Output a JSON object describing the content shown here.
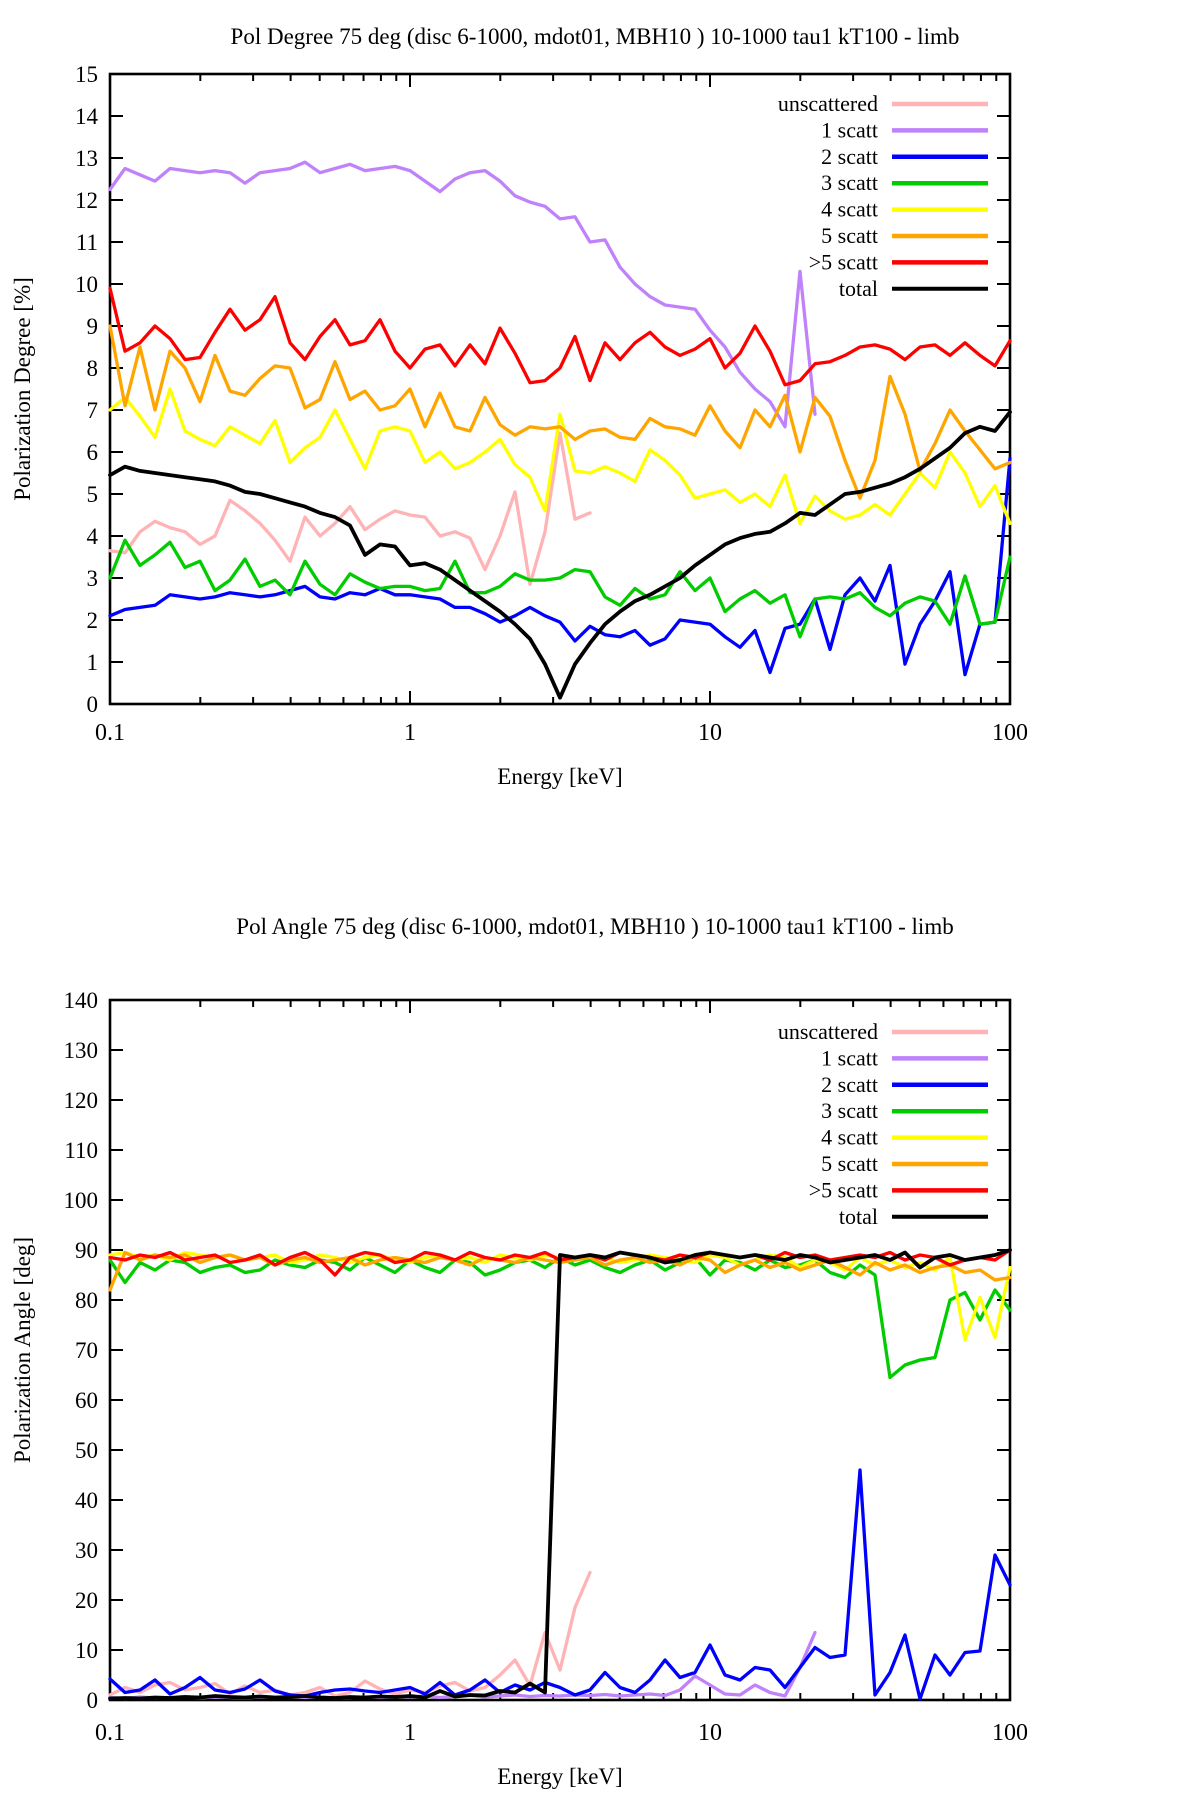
{
  "page": {
    "background": "#ffffff"
  },
  "chart_data": [
    {
      "id": "pol-degree",
      "type": "line",
      "title": "Pol Degree 75 deg (disc 6-1000, mdot01, MBH10 ) 10-1000 tau1 kT100 - limb",
      "x_axis": {
        "label": "Energy [keV]",
        "scale": "log",
        "min": 0.1,
        "max": 100,
        "tick_labels": [
          "0.1",
          "1",
          "10",
          "100"
        ]
      },
      "y_axis": {
        "label": "Polarization Degree [%]",
        "min": 0,
        "max": 15,
        "step": 1,
        "tick_labels": [
          "0",
          "1",
          "2",
          "3",
          "4",
          "5",
          "6",
          "7",
          "8",
          "9",
          "10",
          "11",
          "12",
          "13",
          "14",
          "15"
        ]
      },
      "legend_position": "top-right",
      "grid": false,
      "x_log_grid": {
        "start_exponent": -1,
        "points_per_decade": 20,
        "count": 61
      },
      "series": [
        {
          "name": "unscattered",
          "color": "#ffb3b5",
          "values": [
            3.65,
            3.6,
            4.1,
            4.35,
            4.2,
            4.1,
            3.8,
            4.0,
            4.85,
            4.6,
            4.3,
            3.9,
            3.4,
            4.45,
            4.0,
            4.3,
            4.7,
            4.15,
            4.4,
            4.6,
            4.5,
            4.45,
            4.0,
            4.1,
            3.95,
            3.2,
            4.0,
            5.05,
            2.85,
            4.1,
            6.45,
            4.4,
            4.55
          ]
        },
        {
          "name": "1 scatt",
          "color": "#bf82fa",
          "values": [
            12.25,
            12.75,
            12.6,
            12.45,
            12.75,
            12.7,
            12.65,
            12.7,
            12.65,
            12.4,
            12.65,
            12.7,
            12.75,
            12.9,
            12.65,
            12.75,
            12.85,
            12.7,
            12.75,
            12.8,
            12.7,
            12.45,
            12.2,
            12.5,
            12.65,
            12.7,
            12.45,
            12.1,
            11.95,
            11.85,
            11.55,
            11.6,
            11.0,
            11.05,
            10.4,
            10.0,
            9.7,
            9.5,
            9.45,
            9.4,
            8.9,
            8.5,
            7.9,
            7.5,
            7.2,
            6.6,
            10.3,
            6.9
          ]
        },
        {
          "name": "2 scatt",
          "color": "#0000ff",
          "values": [
            2.1,
            2.25,
            2.3,
            2.35,
            2.6,
            2.55,
            2.5,
            2.55,
            2.65,
            2.6,
            2.55,
            2.6,
            2.7,
            2.8,
            2.55,
            2.5,
            2.65,
            2.6,
            2.75,
            2.6,
            2.6,
            2.55,
            2.5,
            2.3,
            2.3,
            2.15,
            1.95,
            2.1,
            2.3,
            2.1,
            1.95,
            1.5,
            1.85,
            1.65,
            1.6,
            1.75,
            1.4,
            1.55,
            2.0,
            1.95,
            1.9,
            1.6,
            1.35,
            1.75,
            0.75,
            1.8,
            1.9,
            2.5,
            1.3,
            2.6,
            3.0,
            2.45,
            3.3,
            0.95,
            1.9,
            2.45,
            3.15,
            0.7,
            1.9,
            1.95,
            5.85
          ]
        },
        {
          "name": "3 scatt",
          "color": "#00cc00",
          "values": [
            3.0,
            3.9,
            3.3,
            3.55,
            3.85,
            3.25,
            3.4,
            2.7,
            2.95,
            3.45,
            2.8,
            2.95,
            2.6,
            3.4,
            2.85,
            2.6,
            3.1,
            2.9,
            2.75,
            2.8,
            2.8,
            2.7,
            2.75,
            3.4,
            2.65,
            2.65,
            2.8,
            3.1,
            2.95,
            2.95,
            3.0,
            3.2,
            3.15,
            2.55,
            2.35,
            2.75,
            2.5,
            2.6,
            3.15,
            2.7,
            3.0,
            2.2,
            2.5,
            2.7,
            2.4,
            2.6,
            1.6,
            2.5,
            2.55,
            2.5,
            2.65,
            2.3,
            2.1,
            2.4,
            2.55,
            2.45,
            1.9,
            3.05,
            1.9,
            1.95,
            3.5
          ]
        },
        {
          "name": "4 scatt",
          "color": "#ffff00",
          "values": [
            7.0,
            7.3,
            6.85,
            6.35,
            7.5,
            6.5,
            6.3,
            6.15,
            6.6,
            6.4,
            6.2,
            6.75,
            5.75,
            6.1,
            6.35,
            7.0,
            6.3,
            5.6,
            6.5,
            6.6,
            6.5,
            5.75,
            6.0,
            5.6,
            5.75,
            6.0,
            6.3,
            5.7,
            5.4,
            4.6,
            6.9,
            5.55,
            5.5,
            5.65,
            5.5,
            5.3,
            6.05,
            5.8,
            5.45,
            4.9,
            5.0,
            5.1,
            4.8,
            5.0,
            4.7,
            5.45,
            4.3,
            4.95,
            4.6,
            4.4,
            4.5,
            4.75,
            4.5,
            5.0,
            5.5,
            5.15,
            6.0,
            5.5,
            4.7,
            5.2,
            4.3
          ]
        },
        {
          "name": "5 scatt",
          "color": "#ffa500",
          "values": [
            9.0,
            7.1,
            8.5,
            7.0,
            8.4,
            8.0,
            7.2,
            8.3,
            7.45,
            7.35,
            7.75,
            8.05,
            8.0,
            7.05,
            7.25,
            8.15,
            7.25,
            7.45,
            7.0,
            7.1,
            7.5,
            6.6,
            7.4,
            6.6,
            6.5,
            7.3,
            6.65,
            6.4,
            6.6,
            6.55,
            6.6,
            6.3,
            6.5,
            6.55,
            6.35,
            6.3,
            6.8,
            6.6,
            6.55,
            6.4,
            7.1,
            6.5,
            6.1,
            7.0,
            6.6,
            7.35,
            6.0,
            7.3,
            6.85,
            5.8,
            4.9,
            5.8,
            7.8,
            6.9,
            5.55,
            6.2,
            7.0,
            6.5,
            6.05,
            5.6,
            5.75
          ]
        },
        {
          "name": ">5 scatt",
          "color": "#ff0000",
          "values": [
            9.9,
            8.4,
            8.6,
            9.0,
            8.7,
            8.2,
            8.25,
            8.85,
            9.4,
            8.9,
            9.15,
            9.7,
            8.6,
            8.2,
            8.75,
            9.15,
            8.55,
            8.65,
            9.15,
            8.4,
            8.0,
            8.45,
            8.55,
            8.05,
            8.55,
            8.1,
            8.95,
            8.35,
            7.65,
            7.7,
            8.0,
            8.75,
            7.7,
            8.6,
            8.2,
            8.6,
            8.85,
            8.5,
            8.3,
            8.45,
            8.7,
            8.0,
            8.35,
            9.0,
            8.4,
            7.6,
            7.7,
            8.1,
            8.15,
            8.3,
            8.5,
            8.55,
            8.45,
            8.2,
            8.5,
            8.55,
            8.3,
            8.6,
            8.3,
            8.05,
            8.65
          ]
        },
        {
          "name": "total",
          "color": "#000000",
          "values": [
            5.45,
            5.65,
            5.55,
            5.5,
            5.45,
            5.4,
            5.35,
            5.3,
            5.2,
            5.05,
            5.0,
            4.9,
            4.8,
            4.7,
            4.55,
            4.45,
            4.25,
            3.55,
            3.8,
            3.75,
            3.3,
            3.35,
            3.2,
            2.95,
            2.7,
            2.45,
            2.2,
            1.9,
            1.55,
            0.95,
            0.15,
            0.95,
            1.45,
            1.9,
            2.2,
            2.45,
            2.6,
            2.8,
            3.0,
            3.3,
            3.55,
            3.8,
            3.95,
            4.05,
            4.1,
            4.3,
            4.55,
            4.5,
            4.75,
            5.0,
            5.05,
            5.15,
            5.25,
            5.4,
            5.6,
            5.85,
            6.1,
            6.45,
            6.6,
            6.5,
            6.95
          ]
        }
      ]
    },
    {
      "id": "pol-angle",
      "type": "line",
      "title": "Pol Angle 75 deg (disc 6-1000, mdot01, MBH10 ) 10-1000 tau1 kT100 - limb",
      "x_axis": {
        "label": "Energy [keV]",
        "scale": "log",
        "min": 0.1,
        "max": 100,
        "tick_labels": [
          "0.1",
          "1",
          "10",
          "100"
        ]
      },
      "y_axis": {
        "label": "Polarization Angle [deg]",
        "min": 0,
        "max": 140,
        "step": 10,
        "tick_labels": [
          "0",
          "10",
          "20",
          "30",
          "40",
          "50",
          "60",
          "70",
          "80",
          "90",
          "100",
          "110",
          "120",
          "130",
          "140"
        ]
      },
      "legend_position": "top-right",
      "grid": false,
      "x_log_grid": {
        "start_exponent": -1,
        "points_per_decade": 20,
        "count": 61
      },
      "series": [
        {
          "name": "unscattered",
          "color": "#ffb3b5",
          "values": [
            1.0,
            2.5,
            1.5,
            3.0,
            3.5,
            2.0,
            2.5,
            3.3,
            1.2,
            2.8,
            1.5,
            2.0,
            1.0,
            1.5,
            2.5,
            0.8,
            1.5,
            3.8,
            2.2,
            1.2,
            2.0,
            1.5,
            2.8,
            3.5,
            1.8,
            2.5,
            5.0,
            8.0,
            2.9,
            13.5,
            6.0,
            18.5,
            25.5
          ]
        },
        {
          "name": "1 scatt",
          "color": "#bf82fa",
          "values": [
            0.5,
            0.3,
            0.6,
            0.4,
            0.5,
            0.7,
            0.4,
            0.6,
            0.5,
            0.4,
            0.6,
            0.5,
            0.7,
            0.5,
            0.6,
            0.4,
            0.5,
            0.6,
            0.5,
            0.7,
            0.6,
            0.8,
            0.5,
            0.7,
            0.9,
            0.6,
            0.8,
            1.0,
            0.7,
            0.9,
            0.8,
            1.0,
            0.9,
            1.1,
            0.8,
            1.0,
            1.2,
            0.9,
            2.0,
            4.8,
            3.0,
            1.2,
            1.0,
            3.0,
            1.5,
            0.8,
            6.5,
            13.5
          ]
        },
        {
          "name": "2 scatt",
          "color": "#0000ff",
          "values": [
            4.2,
            1.5,
            2.0,
            4.0,
            1.2,
            2.5,
            4.5,
            2.0,
            1.5,
            2.2,
            4.0,
            1.8,
            1.0,
            0.8,
            1.5,
            2.0,
            2.2,
            1.8,
            1.5,
            2.0,
            2.5,
            1.2,
            3.5,
            1.0,
            2.0,
            4.0,
            1.5,
            3.0,
            2.0,
            3.5,
            2.5,
            1.0,
            2.0,
            5.5,
            2.5,
            1.5,
            4.0,
            8.0,
            4.5,
            5.5,
            11.0,
            5.0,
            4.0,
            6.5,
            6.0,
            2.5,
            6.5,
            10.5,
            8.5,
            9.0,
            46.0,
            1.0,
            5.5,
            13.0,
            0.2,
            9.0,
            5.0,
            9.5,
            9.8,
            29.0,
            23.0
          ]
        },
        {
          "name": "3 scatt",
          "color": "#00cc00",
          "values": [
            88.0,
            83.5,
            87.5,
            86.0,
            88.0,
            87.5,
            85.5,
            86.5,
            87.0,
            85.5,
            86.0,
            88.0,
            87.0,
            86.5,
            88.0,
            87.5,
            86.0,
            88.5,
            87.0,
            85.5,
            88.0,
            86.5,
            85.5,
            88.0,
            87.5,
            85.0,
            86.0,
            87.5,
            88.0,
            86.5,
            88.5,
            87.0,
            88.0,
            86.5,
            85.5,
            87.0,
            88.0,
            86.0,
            87.5,
            88.5,
            85.0,
            88.0,
            87.5,
            86.0,
            88.0,
            86.5,
            87.0,
            88.0,
            85.5,
            84.5,
            87.0,
            85.0,
            64.5,
            67.0,
            68.0,
            68.5,
            80.0,
            81.5,
            76.0,
            82.0,
            78.0
          ]
        },
        {
          "name": "4 scatt",
          "color": "#ffff00",
          "values": [
            89.0,
            89.5,
            88.5,
            89.0,
            88.0,
            89.5,
            89.0,
            88.5,
            89.0,
            88.0,
            88.5,
            89.0,
            87.5,
            88.0,
            89.0,
            88.5,
            87.5,
            88.5,
            89.0,
            88.0,
            87.5,
            88.5,
            89.0,
            88.0,
            88.5,
            87.5,
            89.0,
            88.5,
            88.0,
            89.0,
            88.5,
            88.0,
            89.0,
            88.5,
            87.5,
            88.0,
            89.0,
            88.5,
            88.0,
            87.5,
            89.0,
            88.5,
            87.0,
            88.0,
            89.0,
            88.5,
            86.5,
            88.0,
            87.5,
            86.0,
            88.5,
            87.0,
            88.0,
            86.5,
            87.5,
            86.0,
            88.5,
            72.0,
            80.5,
            72.5,
            86.5
          ]
        },
        {
          "name": "5 scatt",
          "color": "#ffa500",
          "values": [
            82.0,
            89.5,
            88.0,
            89.0,
            88.5,
            89.0,
            87.5,
            88.5,
            89.0,
            88.0,
            88.5,
            87.0,
            88.0,
            88.5,
            87.5,
            88.0,
            88.5,
            87.0,
            88.0,
            88.5,
            88.0,
            87.5,
            88.5,
            88.0,
            87.0,
            88.5,
            88.0,
            87.5,
            88.5,
            88.0,
            87.5,
            88.0,
            88.5,
            87.0,
            88.0,
            88.5,
            87.5,
            88.0,
            87.0,
            88.5,
            88.0,
            85.5,
            87.0,
            88.0,
            86.5,
            87.5,
            86.0,
            87.0,
            88.0,
            86.5,
            85.0,
            87.5,
            86.0,
            87.0,
            85.5,
            86.5,
            87.0,
            85.5,
            86.0,
            84.0,
            84.5
          ]
        },
        {
          "name": ">5 scatt",
          "color": "#ff0000",
          "values": [
            88.5,
            88.0,
            89.0,
            88.5,
            89.5,
            88.0,
            88.5,
            89.0,
            87.5,
            88.0,
            89.0,
            87.0,
            88.5,
            89.5,
            88.0,
            85.0,
            88.5,
            89.5,
            89.0,
            87.5,
            88.0,
            89.5,
            89.0,
            88.0,
            89.5,
            88.5,
            88.0,
            89.0,
            88.5,
            89.5,
            88.0,
            88.5,
            89.0,
            88.0,
            89.5,
            89.0,
            88.5,
            88.0,
            89.0,
            88.5,
            89.5,
            89.0,
            88.5,
            89.0,
            88.0,
            89.5,
            88.5,
            89.0,
            88.0,
            88.5,
            89.0,
            88.5,
            89.5,
            88.0,
            89.0,
            88.5,
            87.0,
            88.0,
            88.5,
            88.0,
            90.0
          ]
        },
        {
          "name": "total",
          "color": "#000000",
          "values": [
            0.3,
            0.4,
            0.3,
            0.5,
            0.4,
            0.6,
            0.5,
            0.8,
            0.6,
            0.5,
            0.7,
            0.5,
            0.6,
            0.8,
            0.5,
            0.4,
            0.6,
            0.5,
            0.7,
            0.6,
            0.8,
            0.5,
            1.8,
            0.7,
            1.0,
            0.9,
            1.8,
            1.5,
            3.3,
            1.5,
            89.0,
            88.5,
            89.0,
            88.5,
            89.5,
            89.0,
            88.5,
            87.5,
            88.0,
            89.0,
            89.5,
            89.0,
            88.5,
            89.0,
            88.5,
            88.0,
            89.0,
            88.5,
            87.5,
            88.0,
            88.5,
            89.0,
            88.0,
            89.5,
            86.5,
            88.5,
            89.0,
            88.0,
            88.5,
            89.0,
            90.0
          ]
        }
      ]
    }
  ]
}
